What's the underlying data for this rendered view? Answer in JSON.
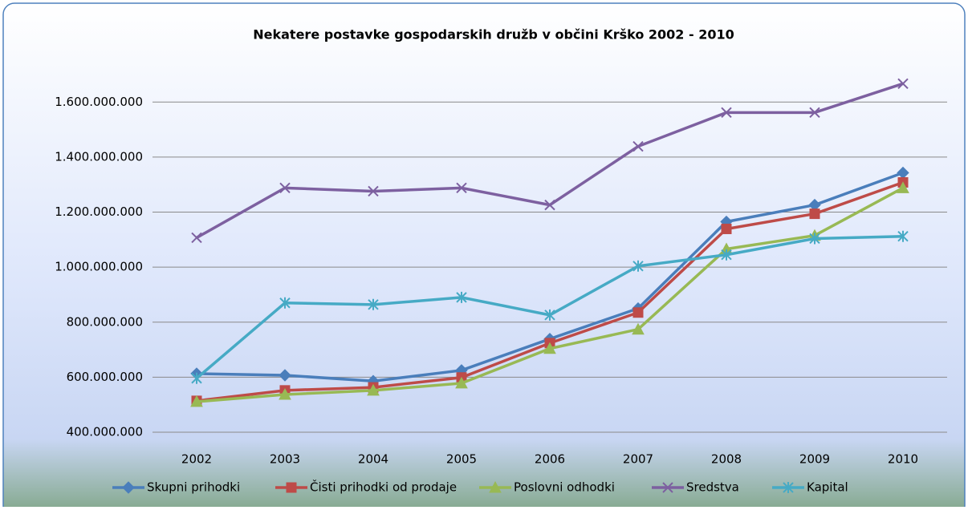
{
  "chart_data": {
    "type": "line",
    "title": "Nekatere postavke gospodarskih družb v  občini Krško 2002 - 2010",
    "categories": [
      "2002",
      "2003",
      "2004",
      "2005",
      "2006",
      "2007",
      "2008",
      "2009",
      "2010"
    ],
    "series": [
      {
        "name": "Skupni prihodki",
        "color": "#4a7ebb",
        "marker": "diamond",
        "values": [
          613000000,
          607000000,
          586000000,
          625000000,
          739000000,
          850000000,
          1165000000,
          1226000000,
          1343000000
        ]
      },
      {
        "name": "Čisti prihodki od prodaje",
        "color": "#be4b48",
        "marker": "square",
        "values": [
          514000000,
          552000000,
          563000000,
          599000000,
          724000000,
          835000000,
          1139000000,
          1194000000,
          1308000000
        ]
      },
      {
        "name": "Poslovni odhodki",
        "color": "#98b954",
        "marker": "triangle",
        "values": [
          511000000,
          537000000,
          552000000,
          578000000,
          704000000,
          774000000,
          1066000000,
          1115000000,
          1288000000
        ]
      },
      {
        "name": "Sredstva",
        "color": "#7d60a0",
        "marker": "x",
        "values": [
          1107000000,
          1288000000,
          1276000000,
          1288000000,
          1226000000,
          1439000000,
          1562000000,
          1562000000,
          1667000000
        ]
      },
      {
        "name": "Kapital",
        "color": "#46aac5",
        "marker": "star",
        "values": [
          596000000,
          870000000,
          864000000,
          890000000,
          826000000,
          1004000000,
          1045000000,
          1104000000,
          1112000000
        ]
      }
    ],
    "ylim": [
      400000000,
      1700000000
    ],
    "yticks": [
      {
        "value": 400000000,
        "label": "400.000.000"
      },
      {
        "value": 600000000,
        "label": "600.000.000"
      },
      {
        "value": 800000000,
        "label": "800.000.000"
      },
      {
        "value": 1000000000,
        "label": "1.000.000.000"
      },
      {
        "value": 1200000000,
        "label": "1.200.000.000"
      },
      {
        "value": 1400000000,
        "label": "1.400.000.000"
      },
      {
        "value": 1600000000,
        "label": "1.600.000.000"
      }
    ],
    "grid": true,
    "legend": "bottom"
  }
}
